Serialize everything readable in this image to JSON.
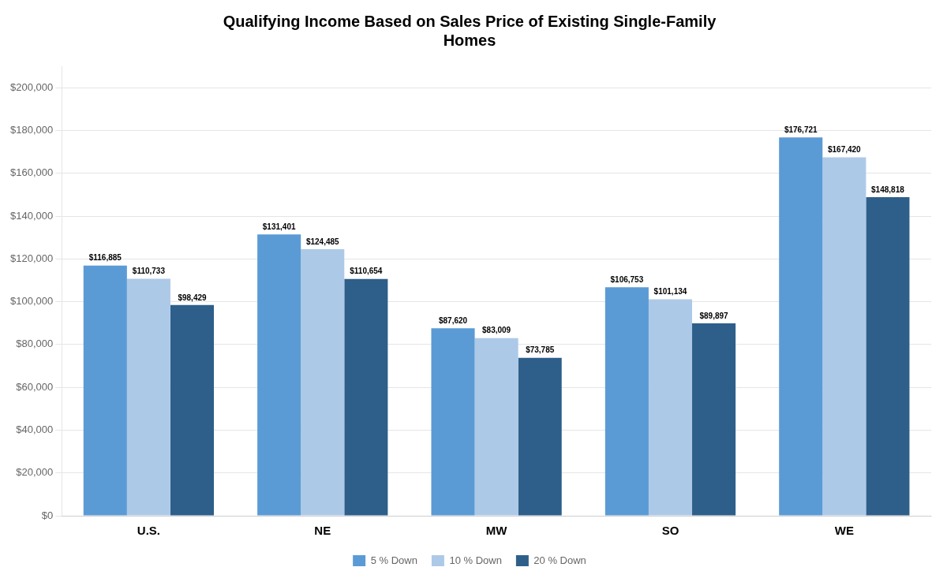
{
  "chart_data": {
    "type": "bar",
    "title": "Qualifying Income Based on Sales Price of Existing Single-Family\nHomes",
    "categories": [
      "U.S.",
      "NE",
      "MW",
      "SO",
      "WE"
    ],
    "series": [
      {
        "name": "5 % Down",
        "color": "#5b9bd5",
        "values": [
          116885,
          131401,
          87620,
          106753,
          176721
        ],
        "value_labels": [
          "$116,885",
          "$131,401",
          "$87,620",
          "$106,753",
          "$176,721"
        ]
      },
      {
        "name": "10 % Down",
        "color": "#adc9e8",
        "values": [
          110733,
          124485,
          83009,
          101134,
          167420
        ],
        "value_labels": [
          "$110,733",
          "$124,485",
          "$83,009",
          "$101,134",
          "$167,420"
        ]
      },
      {
        "name": "20 % Down",
        "color": "#2e5f8a",
        "values": [
          98429,
          110654,
          73785,
          89897,
          148818
        ],
        "value_labels": [
          "$98,429",
          "$110,654",
          "$73,785",
          "$89,897",
          "$148,818"
        ]
      }
    ],
    "ylim": [
      0,
      210000
    ],
    "yticks": [
      {
        "value": 0,
        "label": "$0"
      },
      {
        "value": 20000,
        "label": "$20,000"
      },
      {
        "value": 40000,
        "label": "$40,000"
      },
      {
        "value": 60000,
        "label": "$60,000"
      },
      {
        "value": 80000,
        "label": "$80,000"
      },
      {
        "value": 100000,
        "label": "$100,000"
      },
      {
        "value": 120000,
        "label": "$120,000"
      },
      {
        "value": 140000,
        "label": "$140,000"
      },
      {
        "value": 160000,
        "label": "$160,000"
      },
      {
        "value": 180000,
        "label": "$180,000"
      },
      {
        "value": 200000,
        "label": "$200,000"
      }
    ],
    "grid": true,
    "legend": "bottom",
    "data_labels": true
  }
}
